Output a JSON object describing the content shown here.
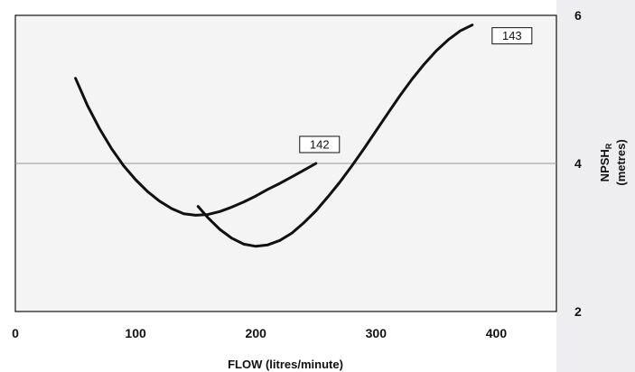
{
  "colors": {
    "plot_background": "#f4f4f5",
    "side_panel": "#eeeef0",
    "curve": "#111111",
    "reference_line": "#999999"
  },
  "chart_data": {
    "type": "line",
    "title": "",
    "xlabel": "FLOW (litres/minute)",
    "ylabel_main": "NPSH",
    "ylabel_subscript": "R",
    "ylabel_units": "(metres)",
    "xlim": [
      0,
      450
    ],
    "ylim": [
      2,
      6
    ],
    "x_ticks": [
      0,
      100,
      200,
      300,
      400
    ],
    "y_ticks": [
      2,
      4,
      6
    ],
    "y_axis_side": "right",
    "reference_line_y": 4,
    "grid": false,
    "legend": "none",
    "series": [
      {
        "name": "142",
        "x": [
          50,
          60,
          70,
          80,
          90,
          100,
          110,
          120,
          130,
          140,
          150,
          160,
          170,
          180,
          190,
          200,
          210,
          220,
          230,
          240,
          250
        ],
        "y": [
          5.15,
          4.78,
          4.47,
          4.2,
          3.97,
          3.78,
          3.62,
          3.49,
          3.39,
          3.32,
          3.3,
          3.31,
          3.35,
          3.41,
          3.48,
          3.56,
          3.65,
          3.73,
          3.82,
          3.91,
          4.0
        ]
      },
      {
        "name": "143",
        "x": [
          152,
          160,
          170,
          180,
          190,
          200,
          210,
          220,
          230,
          240,
          250,
          260,
          270,
          280,
          290,
          300,
          310,
          320,
          330,
          340,
          350,
          360,
          370,
          380
        ],
        "y": [
          3.42,
          3.27,
          3.11,
          2.99,
          2.91,
          2.88,
          2.9,
          2.96,
          3.06,
          3.2,
          3.36,
          3.55,
          3.75,
          3.97,
          4.2,
          4.44,
          4.68,
          4.92,
          5.14,
          5.34,
          5.52,
          5.67,
          5.79,
          5.87
        ]
      }
    ],
    "annotations": [
      {
        "text": "142",
        "series": "142"
      },
      {
        "text": "143",
        "series": "143"
      }
    ]
  }
}
